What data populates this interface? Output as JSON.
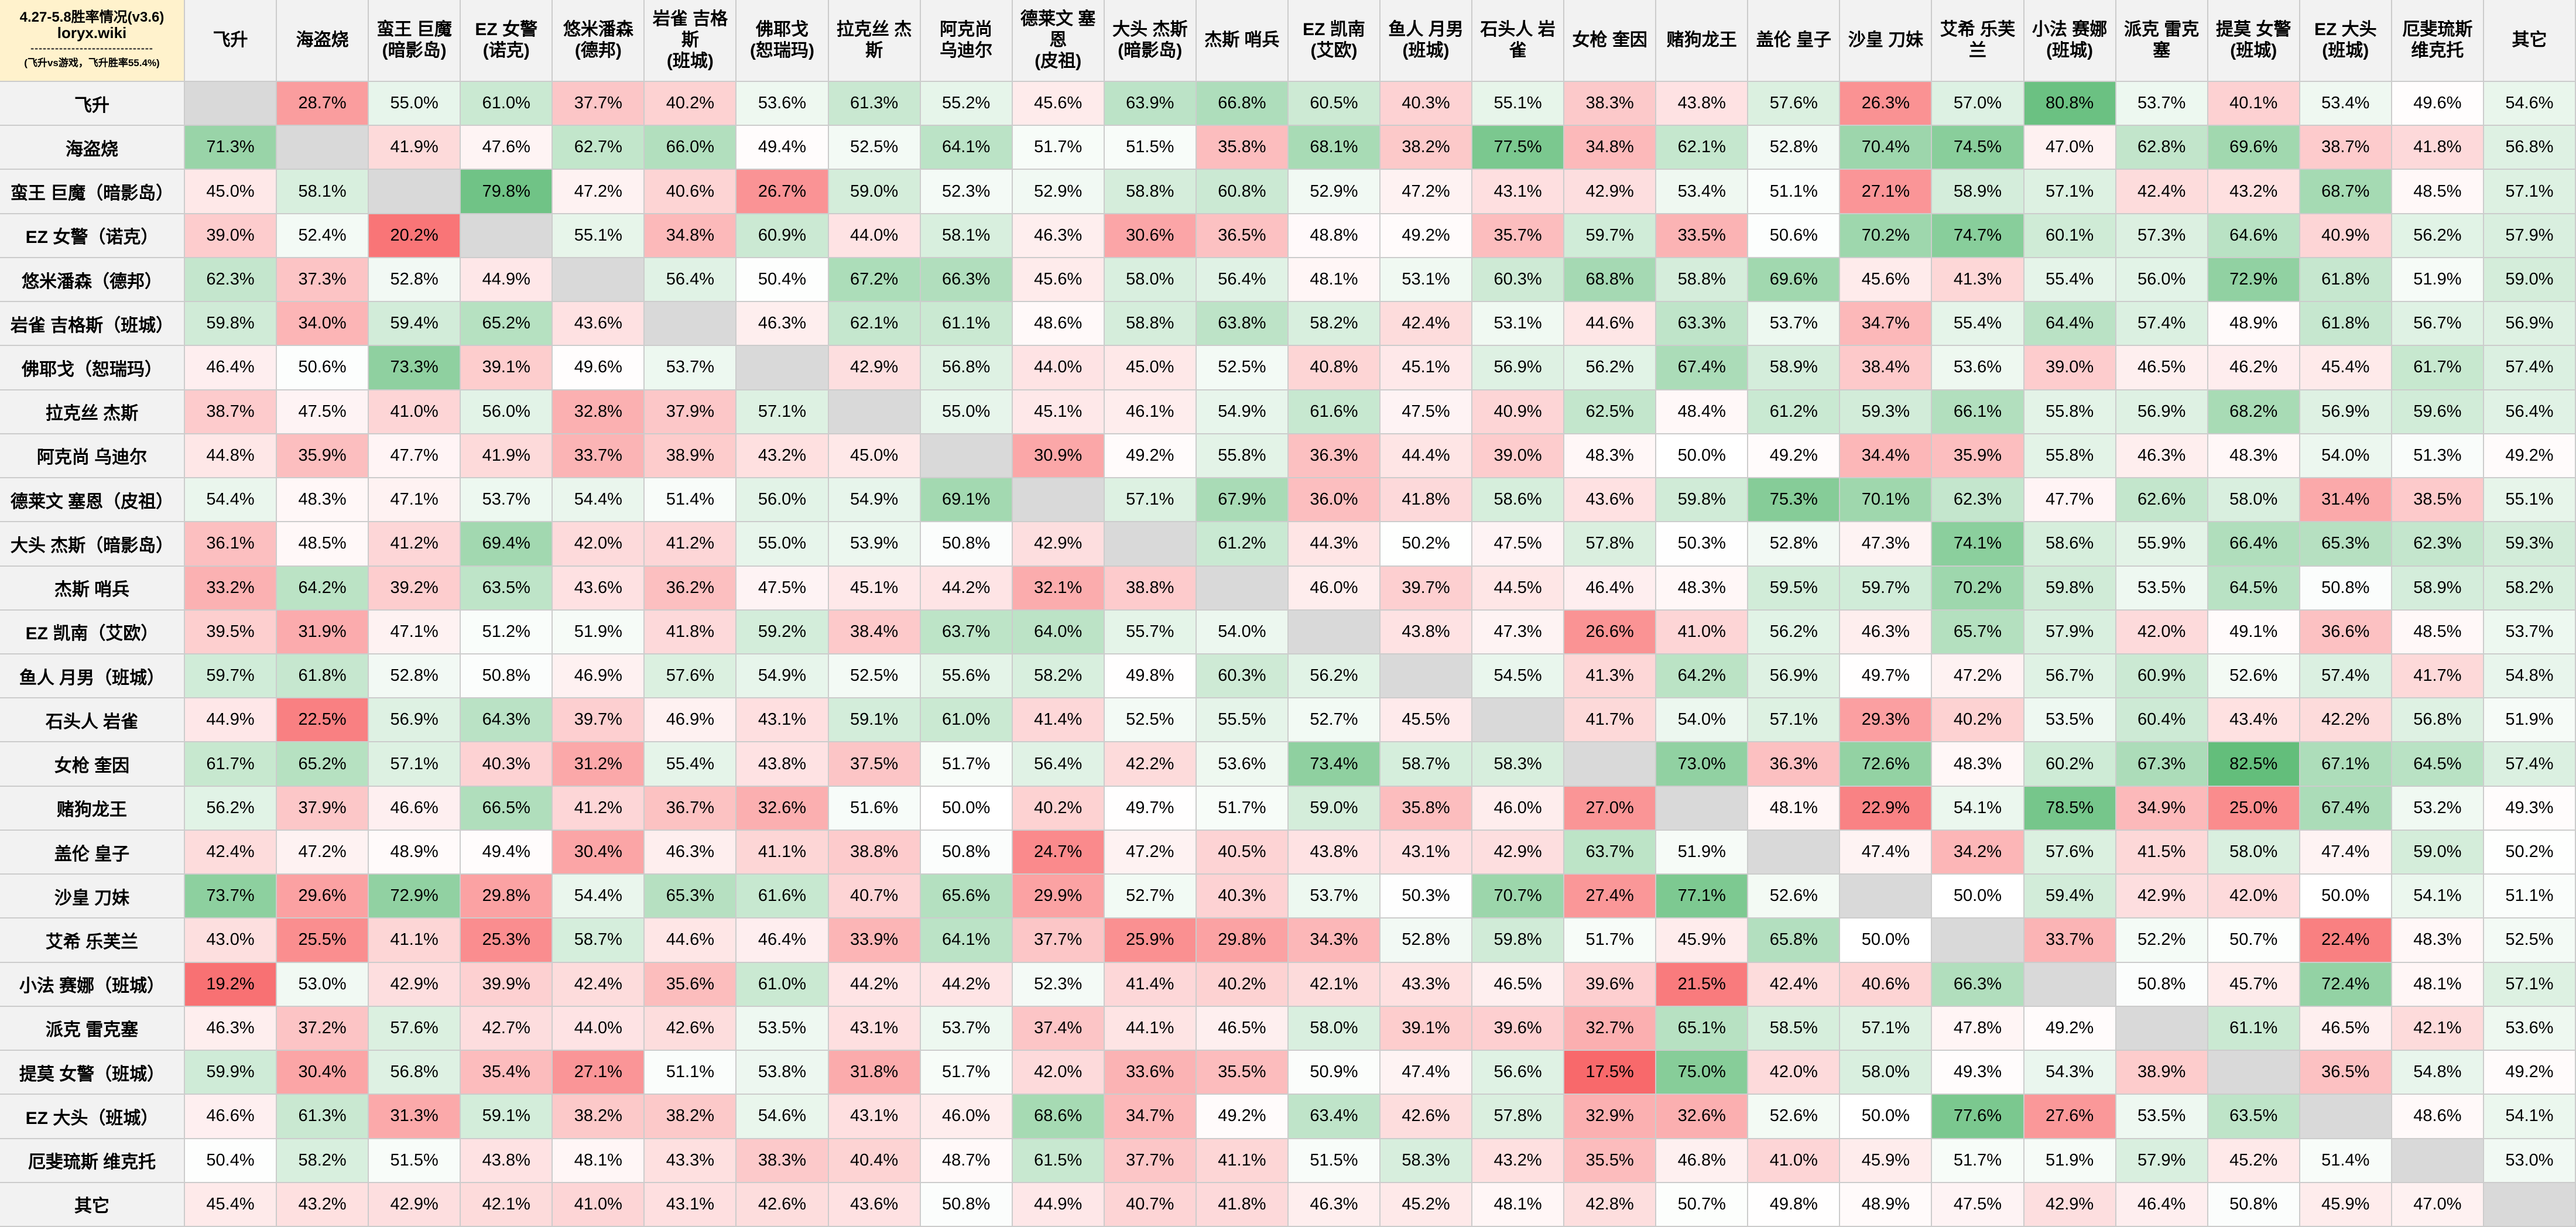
{
  "title": "4.27-5.8胜率情况(v3.6)",
  "site": "loryx.wiki",
  "divider": "------------------------------",
  "note": "(飞升vs游戏，飞升胜率55.4%)",
  "columns": [
    "飞升",
    "海盗烧",
    "蛮王 巨魔\n(暗影岛)",
    "EZ 女警\n(诺克)",
    "悠米潘森\n(德邦)",
    "岩雀 吉格斯\n(班城)",
    "佛耶戈\n(恕瑞玛)",
    "拉克丝 杰斯",
    "阿克尚\n乌迪尔",
    "德莱文 塞恩\n(皮祖)",
    "大头 杰斯\n(暗影岛)",
    "杰斯 哨兵",
    "EZ 凯南\n(艾欧)",
    "鱼人 月男\n(班城)",
    "石头人 岩雀",
    "女枪 奎因",
    "赌狗龙王",
    "盖伦 皇子",
    "沙皇 刀妹",
    "艾希 乐芙兰",
    "小法 赛娜\n(班城)",
    "派克 雷克塞",
    "提莫 女警\n(班城)",
    "EZ 大头\n(班城)",
    "厄斐琉斯\n维克托",
    "其它"
  ],
  "rows": [
    "飞升",
    "海盗烧",
    "蛮王 巨魔（暗影岛）",
    "EZ 女警（诺克）",
    "悠米潘森（德邦）",
    "岩雀 吉格斯（班城）",
    "佛耶戈（恕瑞玛）",
    "拉克丝 杰斯",
    "阿克尚 乌迪尔",
    "德莱文 塞恩（皮祖）",
    "大头 杰斯（暗影岛）",
    "杰斯 哨兵",
    "EZ 凯南（艾欧）",
    "鱼人 月男（班城）",
    "石头人 岩雀",
    "女枪 奎因",
    "赌狗龙王",
    "盖伦 皇子",
    "沙皇 刀妹",
    "艾希 乐芙兰",
    "小法 赛娜（班城）",
    "派克 雷克塞",
    "提莫 女警（班城）",
    "EZ 大头（班城）",
    "厄斐琉斯 维克托",
    "其它"
  ],
  "color_scale": {
    "low": "#f8696b",
    "mid": "#ffffff",
    "high": "#63be7b",
    "low_clip": 17.5,
    "high_clip": 82.5,
    "self_fill": "#d9d9d9"
  },
  "chart_data": {
    "type": "heatmap",
    "title": "4.27-5.8胜率情况(v3.6)",
    "value_unit": "%",
    "values": [
      [
        null,
        28.7,
        55.0,
        61.0,
        37.7,
        40.2,
        53.6,
        61.3,
        55.2,
        45.6,
        63.9,
        66.8,
        60.5,
        40.3,
        55.1,
        38.3,
        43.8,
        57.6,
        26.3,
        57.0,
        80.8,
        53.7,
        40.1,
        53.4,
        49.6,
        54.6
      ],
      [
        71.3,
        null,
        41.9,
        47.6,
        62.7,
        66.0,
        49.4,
        52.5,
        64.1,
        51.7,
        51.5,
        35.8,
        68.1,
        38.2,
        77.5,
        34.8,
        62.1,
        52.8,
        70.4,
        74.5,
        47.0,
        62.8,
        69.6,
        38.7,
        41.8,
        56.8
      ],
      [
        45.0,
        58.1,
        null,
        79.8,
        47.2,
        40.6,
        26.7,
        59.0,
        52.3,
        52.9,
        58.8,
        60.8,
        52.9,
        47.2,
        43.1,
        42.9,
        53.4,
        51.1,
        27.1,
        58.9,
        57.1,
        42.4,
        43.2,
        68.7,
        48.5,
        57.1
      ],
      [
        39.0,
        52.4,
        20.2,
        null,
        55.1,
        34.8,
        60.9,
        44.0,
        58.1,
        46.3,
        30.6,
        36.5,
        48.8,
        49.2,
        35.7,
        59.7,
        33.5,
        50.6,
        70.2,
        74.7,
        60.1,
        57.3,
        64.6,
        40.9,
        56.2,
        57.9
      ],
      [
        62.3,
        37.3,
        52.8,
        44.9,
        null,
        56.4,
        50.4,
        67.2,
        66.3,
        45.6,
        58.0,
        56.4,
        48.1,
        53.1,
        60.3,
        68.8,
        58.8,
        69.6,
        45.6,
        41.3,
        55.4,
        56.0,
        72.9,
        61.8,
        51.9,
        59.0
      ],
      [
        59.8,
        34.0,
        59.4,
        65.2,
        43.6,
        null,
        46.3,
        62.1,
        61.1,
        48.6,
        58.8,
        63.8,
        58.2,
        42.4,
        53.1,
        44.6,
        63.3,
        53.7,
        34.7,
        55.4,
        64.4,
        57.4,
        48.9,
        61.8,
        56.7,
        56.9
      ],
      [
        46.4,
        50.6,
        73.3,
        39.1,
        49.6,
        53.7,
        null,
        42.9,
        56.8,
        44.0,
        45.0,
        52.5,
        40.8,
        45.1,
        56.9,
        56.2,
        67.4,
        58.9,
        38.4,
        53.6,
        39.0,
        46.5,
        46.2,
        45.4,
        61.7,
        57.4
      ],
      [
        38.7,
        47.5,
        41.0,
        56.0,
        32.8,
        37.9,
        57.1,
        null,
        55.0,
        45.1,
        46.1,
        54.9,
        61.6,
        47.5,
        40.9,
        62.5,
        48.4,
        61.2,
        59.3,
        66.1,
        55.8,
        56.9,
        68.2,
        56.9,
        59.6,
        56.4
      ],
      [
        44.8,
        35.9,
        47.7,
        41.9,
        33.7,
        38.9,
        43.2,
        45.0,
        null,
        30.9,
        49.2,
        55.8,
        36.3,
        44.4,
        39.0,
        48.3,
        50.0,
        49.2,
        34.4,
        35.9,
        55.8,
        46.3,
        48.3,
        54.0,
        51.3,
        49.2
      ],
      [
        54.4,
        48.3,
        47.1,
        53.7,
        54.4,
        51.4,
        56.0,
        54.9,
        69.1,
        null,
        57.1,
        67.9,
        36.0,
        41.8,
        58.6,
        43.6,
        59.8,
        75.3,
        70.1,
        62.3,
        47.7,
        62.6,
        58.0,
        31.4,
        38.5,
        55.1
      ],
      [
        36.1,
        48.5,
        41.2,
        69.4,
        42.0,
        41.2,
        55.0,
        53.9,
        50.8,
        42.9,
        null,
        61.2,
        44.3,
        50.2,
        47.5,
        57.8,
        50.3,
        52.8,
        47.3,
        74.1,
        58.6,
        55.9,
        66.4,
        65.3,
        62.3,
        59.3
      ],
      [
        33.2,
        64.2,
        39.2,
        63.5,
        43.6,
        36.2,
        47.5,
        45.1,
        44.2,
        32.1,
        38.8,
        null,
        46.0,
        39.7,
        44.5,
        46.4,
        48.3,
        59.5,
        59.7,
        70.2,
        59.8,
        53.5,
        64.5,
        50.8,
        58.9,
        58.2
      ],
      [
        39.5,
        31.9,
        47.1,
        51.2,
        51.9,
        41.8,
        59.2,
        38.4,
        63.7,
        64.0,
        55.7,
        54.0,
        null,
        43.8,
        47.3,
        26.6,
        41.0,
        56.2,
        46.3,
        65.7,
        57.9,
        42.0,
        49.1,
        36.6,
        48.5,
        53.7
      ],
      [
        59.7,
        61.8,
        52.8,
        50.8,
        46.9,
        57.6,
        54.9,
        52.5,
        55.6,
        58.2,
        49.8,
        60.3,
        56.2,
        null,
        54.5,
        41.3,
        64.2,
        56.9,
        49.7,
        47.2,
        56.7,
        60.9,
        52.6,
        57.4,
        41.7,
        54.8
      ],
      [
        44.9,
        22.5,
        56.9,
        64.3,
        39.7,
        46.9,
        43.1,
        59.1,
        61.0,
        41.4,
        52.5,
        55.5,
        52.7,
        45.5,
        null,
        41.7,
        54.0,
        57.1,
        29.3,
        40.2,
        53.5,
        60.4,
        43.4,
        42.2,
        56.8,
        51.9
      ],
      [
        61.7,
        65.2,
        57.1,
        40.3,
        31.2,
        55.4,
        43.8,
        37.5,
        51.7,
        56.4,
        42.2,
        53.6,
        73.4,
        58.7,
        58.3,
        null,
        73.0,
        36.3,
        72.6,
        48.3,
        60.2,
        67.3,
        82.5,
        67.1,
        64.5,
        57.4
      ],
      [
        56.2,
        37.9,
        46.6,
        66.5,
        41.2,
        36.7,
        32.6,
        51.6,
        50.0,
        40.2,
        49.7,
        51.7,
        59.0,
        35.8,
        46.0,
        27.0,
        null,
        48.1,
        22.9,
        54.1,
        78.5,
        34.9,
        25.0,
        67.4,
        53.2,
        49.3
      ],
      [
        42.4,
        47.2,
        48.9,
        49.4,
        30.4,
        46.3,
        41.1,
        38.8,
        50.8,
        24.7,
        47.2,
        40.5,
        43.8,
        43.1,
        42.9,
        63.7,
        51.9,
        null,
        47.4,
        34.2,
        57.6,
        41.5,
        58.0,
        47.4,
        59.0,
        50.2
      ],
      [
        73.7,
        29.6,
        72.9,
        29.8,
        54.4,
        65.3,
        61.6,
        40.7,
        65.6,
        29.9,
        52.7,
        40.3,
        53.7,
        50.3,
        70.7,
        27.4,
        77.1,
        52.6,
        null,
        50.0,
        59.4,
        42.9,
        42.0,
        50.0,
        54.1,
        51.1
      ],
      [
        43.0,
        25.5,
        41.1,
        25.3,
        58.7,
        44.6,
        46.4,
        33.9,
        64.1,
        37.7,
        25.9,
        29.8,
        34.3,
        52.8,
        59.8,
        51.7,
        45.9,
        65.8,
        50.0,
        null,
        33.7,
        52.2,
        50.7,
        22.4,
        48.3,
        52.5
      ],
      [
        19.2,
        53.0,
        42.9,
        39.9,
        42.4,
        35.6,
        61.0,
        44.2,
        44.2,
        52.3,
        41.4,
        40.2,
        42.1,
        43.3,
        46.5,
        39.6,
        21.5,
        42.4,
        40.6,
        66.3,
        null,
        50.8,
        45.7,
        72.4,
        48.1,
        57.1
      ],
      [
        46.3,
        37.2,
        57.6,
        42.7,
        44.0,
        42.6,
        53.5,
        43.1,
        53.7,
        37.4,
        44.1,
        46.5,
        58.0,
        39.1,
        39.6,
        32.7,
        65.1,
        58.5,
        57.1,
        47.8,
        49.2,
        null,
        61.1,
        46.5,
        42.1,
        53.6
      ],
      [
        59.9,
        30.4,
        56.8,
        35.4,
        27.1,
        51.1,
        53.8,
        31.8,
        51.7,
        42.0,
        33.6,
        35.5,
        50.9,
        47.4,
        56.6,
        17.5,
        75.0,
        42.0,
        58.0,
        49.3,
        54.3,
        38.9,
        null,
        36.5,
        54.8,
        49.2
      ],
      [
        46.6,
        61.3,
        31.3,
        59.1,
        38.2,
        38.2,
        54.6,
        43.1,
        46.0,
        68.6,
        34.7,
        49.2,
        63.4,
        42.6,
        57.8,
        32.9,
        32.6,
        52.6,
        50.0,
        77.6,
        27.6,
        53.5,
        63.5,
        null,
        48.6,
        54.1
      ],
      [
        50.4,
        58.2,
        51.5,
        43.8,
        48.1,
        43.3,
        38.3,
        40.4,
        48.7,
        61.5,
        37.7,
        41.1,
        51.5,
        58.3,
        43.2,
        35.5,
        46.8,
        41.0,
        45.9,
        51.7,
        51.9,
        57.9,
        45.2,
        51.4,
        null,
        53.0
      ],
      [
        45.4,
        43.2,
        42.9,
        42.1,
        41.0,
        43.1,
        42.6,
        43.6,
        50.8,
        44.9,
        40.7,
        41.8,
        46.3,
        45.2,
        48.1,
        42.8,
        50.7,
        49.8,
        48.9,
        47.5,
        42.9,
        46.4,
        50.8,
        45.9,
        47.0,
        null
      ]
    ]
  }
}
